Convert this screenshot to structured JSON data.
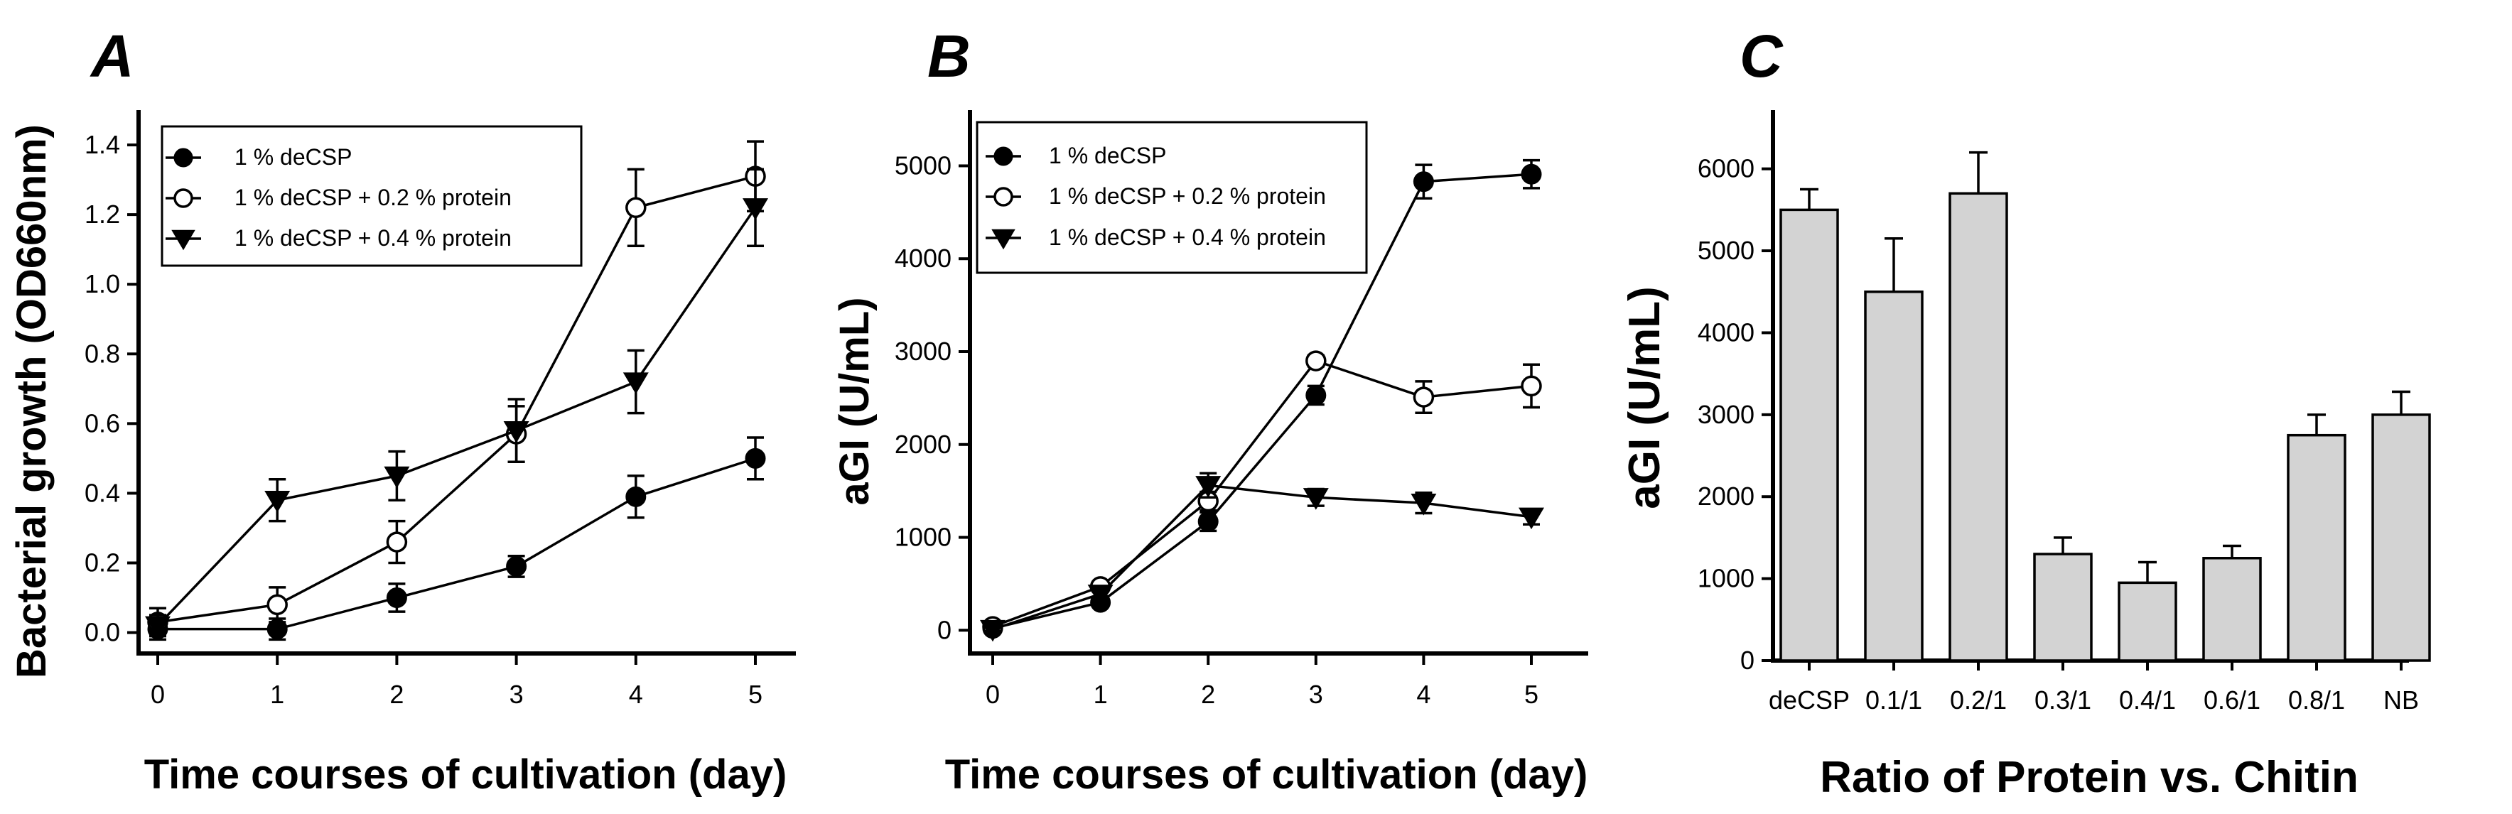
{
  "chart_data": [
    {
      "panel": "A",
      "type": "line",
      "xlabel": "Time courses of cultivation (day)",
      "ylabel": "Bacterial growth (OD660nm)",
      "x": [
        0,
        1,
        2,
        3,
        4,
        5
      ],
      "xticks": [
        "0",
        "1",
        "2",
        "3",
        "4",
        "5"
      ],
      "yticks": [
        "0.0",
        "0.2",
        "0.4",
        "0.6",
        "0.8",
        "1.0",
        "1.2",
        "1.4"
      ],
      "ylim": [
        -0.06,
        1.5
      ],
      "xlim": [
        -0.25,
        5.25
      ],
      "legend_position": "top-left",
      "series": [
        {
          "name": "1 % deCSP",
          "marker": "filled-circle",
          "values": [
            0.01,
            0.01,
            0.1,
            0.19,
            0.39,
            0.5
          ],
          "errors": [
            0.03,
            0.03,
            0.04,
            0.03,
            0.06,
            0.06
          ]
        },
        {
          "name": "1 % deCSP + 0.2 % protein",
          "marker": "open-circle",
          "values": [
            0.03,
            0.08,
            0.26,
            0.57,
            1.22,
            1.31
          ],
          "errors": [
            0.04,
            0.05,
            0.06,
            0.08,
            0.11,
            0.1
          ]
        },
        {
          "name": "1 % deCSP + 0.4 % protein",
          "marker": "filled-triangle-down",
          "values": [
            0.02,
            0.38,
            0.45,
            0.58,
            0.72,
            1.22
          ],
          "errors": [
            0.03,
            0.06,
            0.07,
            0.09,
            0.09,
            0.11
          ]
        }
      ]
    },
    {
      "panel": "B",
      "type": "line",
      "xlabel": "Time courses of cultivation (day)",
      "ylabel": "aGI (U/mL)",
      "x": [
        0,
        1,
        2,
        3,
        4,
        5
      ],
      "xticks": [
        "0",
        "1",
        "2",
        "3",
        "4",
        "5"
      ],
      "yticks": [
        "0",
        "1000",
        "2000",
        "3000",
        "4000",
        "5000"
      ],
      "ylim": [
        -250,
        5600
      ],
      "xlim": [
        -0.25,
        5.25
      ],
      "legend_position": "top-left",
      "series": [
        {
          "name": "1 % deCSP",
          "marker": "filled-circle",
          "values": [
            20,
            300,
            1170,
            2530,
            4830,
            4910
          ],
          "errors": [
            30,
            40,
            100,
            100,
            180,
            150
          ]
        },
        {
          "name": "1 % deCSP + 0.2 % protein",
          "marker": "open-circle",
          "values": [
            40,
            470,
            1390,
            2900,
            2510,
            2630
          ],
          "errors": [
            30,
            40,
            100,
            60,
            170,
            230
          ]
        },
        {
          "name": "1 % deCSP + 0.4 % protein",
          "marker": "filled-triangle-down",
          "values": [
            10,
            390,
            1560,
            1430,
            1370,
            1220
          ],
          "errors": [
            20,
            40,
            130,
            90,
            110,
            80
          ]
        }
      ]
    },
    {
      "panel": "C",
      "type": "bar",
      "xlabel": "Ratio of Protein vs. Chitin",
      "ylabel": "aGI (U/mL)",
      "categories": [
        "deCSP",
        "0.1/1",
        "0.2/1",
        "0.3/1",
        "0.4/1",
        "0.6/1",
        "0.8/1",
        "NB"
      ],
      "values": [
        5500,
        4500,
        5700,
        1300,
        950,
        1250,
        2750,
        3000
      ],
      "errors": [
        250,
        650,
        500,
        200,
        250,
        150,
        250,
        280
      ],
      "yticks": [
        "0",
        "1000",
        "2000",
        "3000",
        "4000",
        "5000",
        "6000"
      ],
      "ylim": [
        0,
        6500
      ],
      "bar_color": "#d3d3d3"
    }
  ]
}
